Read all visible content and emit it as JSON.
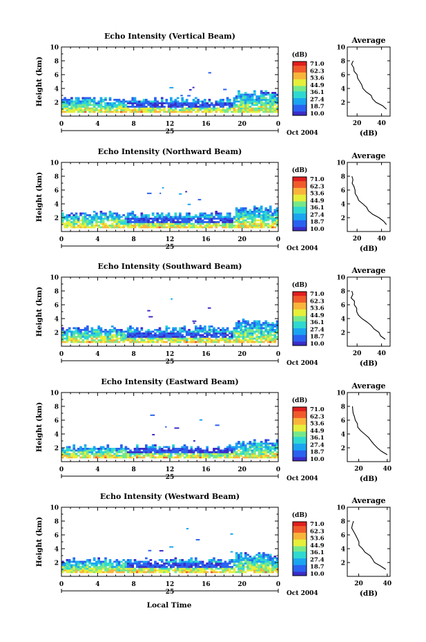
{
  "figure": {
    "xlabel": "Local Time",
    "colorbar_unit": "(dB)",
    "colorbar_ticks": [
      "71.0",
      "62.3",
      "53.6",
      "44.9",
      "36.1",
      "27.4",
      "18.7",
      "10.0"
    ],
    "colormap": [
      "#3a2bc8",
      "#2a62f0",
      "#1aa5f0",
      "#2fd9d0",
      "#76e88a",
      "#e6ef3a",
      "#f9b43a",
      "#f05a2a",
      "#e01e1e"
    ]
  },
  "chart_data": [
    {
      "type": "heatmap",
      "title": "Echo Intensity (Vertical Beam)",
      "xlabel": "",
      "ylabel": "Height (km)",
      "x_ticks": [
        "0",
        "4",
        "8",
        "12",
        "16",
        "20",
        "0"
      ],
      "y_ticks": [
        "2",
        "4",
        "6",
        "8",
        "10"
      ],
      "xlim": [
        0,
        24
      ],
      "ylim": [
        0,
        10
      ],
      "date_label": "25",
      "month_label": "Oct 2004",
      "colorbar": {
        "label": "(dB)",
        "range": [
          10.0,
          71.0
        ]
      },
      "cloud_top_km": 2.3,
      "profile": {
        "title": "Average",
        "xlabel": "(dB)",
        "x_ticks": [
          "20",
          "40"
        ],
        "xlim": [
          12,
          47
        ],
        "ylim": [
          0,
          10
        ],
        "heights": [
          1,
          1.5,
          2,
          2.5,
          3,
          3.5,
          4,
          4.5,
          5,
          5.5,
          6,
          6.5,
          7,
          7.5,
          8
        ],
        "values": [
          44,
          40,
          36,
          33,
          31,
          28,
          25,
          23,
          22,
          20,
          19,
          17,
          17,
          16,
          16
        ]
      }
    },
    {
      "type": "heatmap",
      "title": "Echo Intensity (Northward Beam)",
      "xlabel": "",
      "ylabel": "Height (km)",
      "x_ticks": [
        "0",
        "4",
        "8",
        "12",
        "16",
        "20",
        "0"
      ],
      "y_ticks": [
        "2",
        "4",
        "6",
        "8",
        "10"
      ],
      "xlim": [
        0,
        24
      ],
      "ylim": [
        0,
        10
      ],
      "date_label": "25",
      "month_label": "Oct 2004",
      "colorbar": {
        "label": "(dB)",
        "range": [
          10.0,
          71.0
        ]
      },
      "cloud_top_km": 2.4,
      "profile": {
        "title": "Average",
        "xlabel": "(dB)",
        "x_ticks": [
          "20",
          "40"
        ],
        "xlim": [
          12,
          47
        ],
        "ylim": [
          0,
          10
        ],
        "heights": [
          1,
          1.5,
          2,
          2.5,
          3,
          3.5,
          4,
          4.5,
          5,
          5.5,
          6,
          6.5,
          7,
          7.5,
          8
        ],
        "values": [
          44,
          41,
          37,
          33,
          30,
          27,
          24,
          22,
          20,
          19,
          18,
          17,
          16,
          16,
          16
        ]
      }
    },
    {
      "type": "heatmap",
      "title": "Echo Intensity (Southward Beam)",
      "xlabel": "",
      "ylabel": "Height (km)",
      "x_ticks": [
        "0",
        "4",
        "8",
        "12",
        "16",
        "20",
        "0"
      ],
      "y_ticks": [
        "2",
        "4",
        "6",
        "8",
        "10"
      ],
      "xlim": [
        0,
        24
      ],
      "ylim": [
        0,
        10
      ],
      "date_label": "25",
      "month_label": "Oct 2004",
      "colorbar": {
        "label": "(dB)",
        "range": [
          10.0,
          71.0
        ]
      },
      "cloud_top_km": 2.5,
      "profile": {
        "title": "Average",
        "xlabel": "(dB)",
        "x_ticks": [
          "20",
          "40"
        ],
        "xlim": [
          12,
          47
        ],
        "ylim": [
          0,
          10
        ],
        "heights": [
          1,
          1.5,
          2,
          2.5,
          3,
          3.5,
          4,
          4.5,
          5,
          5.5,
          6,
          6.5,
          7,
          7.5,
          8
        ],
        "values": [
          43,
          40,
          37,
          34,
          31,
          28,
          24,
          22,
          20,
          19,
          18,
          17,
          16,
          16,
          16
        ]
      }
    },
    {
      "type": "heatmap",
      "title": "Echo Intensity (Eastward Beam)",
      "xlabel": "",
      "ylabel": "Height (km)",
      "x_ticks": [
        "0",
        "4",
        "8",
        "12",
        "16",
        "20",
        "0"
      ],
      "y_ticks": [
        "2",
        "4",
        "6",
        "8",
        "10"
      ],
      "xlim": [
        0,
        24
      ],
      "ylim": [
        0,
        10
      ],
      "date_label": "25",
      "month_label": "Oct 2004",
      "colorbar": {
        "label": "(dB)",
        "range": [
          10.0,
          71.0
        ]
      },
      "cloud_top_km": 2.0,
      "profile": {
        "title": "Average",
        "xlabel": "(dB)",
        "x_ticks": [
          "20",
          "40"
        ],
        "xlim": [
          12,
          42
        ],
        "ylim": [
          0,
          10
        ],
        "heights": [
          1,
          1.5,
          2,
          2.5,
          3,
          3.5,
          4,
          4.5,
          5,
          5.5,
          6,
          6.5,
          7,
          7.5,
          8
        ],
        "values": [
          40,
          36,
          33,
          30,
          28,
          26,
          24,
          22,
          20,
          19,
          18,
          17,
          16,
          16,
          16
        ]
      }
    },
    {
      "type": "heatmap",
      "title": "Echo Intensity (Westward Beam)",
      "xlabel": "Local Time",
      "ylabel": "Height (km)",
      "x_ticks": [
        "0",
        "4",
        "8",
        "12",
        "16",
        "20",
        "0"
      ],
      "y_ticks": [
        "2",
        "4",
        "6",
        "8",
        "10"
      ],
      "xlim": [
        0,
        24
      ],
      "ylim": [
        0,
        10
      ],
      "date_label": "25",
      "month_label": "Oct 2004",
      "colorbar": {
        "label": "(dB)",
        "range": [
          10.0,
          71.0
        ]
      },
      "cloud_top_km": 2.2,
      "profile": {
        "title": "Average",
        "xlabel": "(dB)",
        "x_ticks": [
          "20",
          "40"
        ],
        "xlim": [
          12,
          42
        ],
        "ylim": [
          0,
          10
        ],
        "heights": [
          1,
          1.5,
          2,
          2.5,
          3,
          3.5,
          4,
          4.5,
          5,
          5.5,
          6,
          6.5,
          7,
          7.5,
          8
        ],
        "values": [
          39,
          35,
          32,
          29,
          27,
          25,
          23,
          21,
          20,
          19,
          18,
          17,
          16,
          16,
          16
        ]
      }
    }
  ]
}
